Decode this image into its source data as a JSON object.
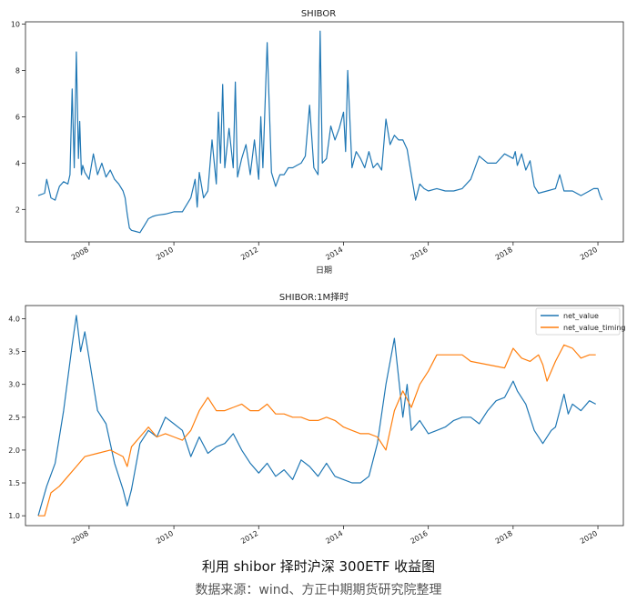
{
  "chart_data": [
    {
      "type": "line",
      "title": "SHIBOR",
      "xlabel": "日期",
      "ylabel": "",
      "xlim": [
        2006.5,
        2020.6
      ],
      "ylim": [
        0.6,
        10.1
      ],
      "xticks": [
        2008,
        2010,
        2012,
        2014,
        2016,
        2018,
        2020
      ],
      "xtick_labels": [
        "2008",
        "2010",
        "2012",
        "2014",
        "2016",
        "2018",
        "2020"
      ],
      "yticks": [
        2,
        4,
        6,
        8,
        10
      ],
      "ytick_labels": [
        "2",
        "4",
        "6",
        "8",
        "10"
      ],
      "grid": false,
      "series": [
        {
          "name": "SHIBOR",
          "color": "#1f77b4",
          "x": [
            2006.8,
            2006.95,
            2007.0,
            2007.1,
            2007.2,
            2007.3,
            2007.4,
            2007.5,
            2007.55,
            2007.6,
            2007.65,
            2007.7,
            2007.75,
            2007.78,
            2007.82,
            2007.85,
            2007.9,
            2008.0,
            2008.1,
            2008.2,
            2008.3,
            2008.4,
            2008.5,
            2008.6,
            2008.7,
            2008.8,
            2008.85,
            2008.9,
            2008.95,
            2009.0,
            2009.1,
            2009.2,
            2009.3,
            2009.4,
            2009.5,
            2009.6,
            2009.8,
            2010.0,
            2010.2,
            2010.4,
            2010.5,
            2010.55,
            2010.6,
            2010.7,
            2010.8,
            2010.9,
            2011.0,
            2011.05,
            2011.1,
            2011.15,
            2011.2,
            2011.3,
            2011.4,
            2011.45,
            2011.5,
            2011.6,
            2011.7,
            2011.8,
            2011.9,
            2012.0,
            2012.05,
            2012.1,
            2012.2,
            2012.3,
            2012.4,
            2012.5,
            2012.6,
            2012.7,
            2012.8,
            2012.9,
            2013.0,
            2013.1,
            2013.2,
            2013.3,
            2013.4,
            2013.45,
            2013.5,
            2013.6,
            2013.7,
            2013.8,
            2013.9,
            2014.0,
            2014.05,
            2014.1,
            2014.2,
            2014.3,
            2014.4,
            2014.5,
            2014.6,
            2014.7,
            2014.8,
            2014.9,
            2015.0,
            2015.1,
            2015.2,
            2015.3,
            2015.4,
            2015.5,
            2015.6,
            2015.7,
            2015.8,
            2015.9,
            2016.0,
            2016.2,
            2016.4,
            2016.6,
            2016.8,
            2017.0,
            2017.2,
            2017.4,
            2017.6,
            2017.8,
            2018.0,
            2018.05,
            2018.1,
            2018.2,
            2018.3,
            2018.4,
            2018.5,
            2018.6,
            2018.8,
            2019.0,
            2019.1,
            2019.2,
            2019.4,
            2019.6,
            2019.8,
            2019.9,
            2020.0,
            2020.05,
            2020.1
          ],
          "y": [
            2.6,
            2.7,
            3.3,
            2.5,
            2.4,
            3.0,
            3.2,
            3.1,
            3.5,
            7.2,
            3.8,
            8.8,
            4.2,
            5.8,
            3.5,
            3.9,
            3.6,
            3.3,
            4.4,
            3.5,
            4.0,
            3.4,
            3.7,
            3.3,
            3.1,
            2.8,
            2.5,
            1.8,
            1.2,
            1.1,
            1.05,
            1.0,
            1.3,
            1.6,
            1.7,
            1.75,
            1.8,
            1.9,
            1.9,
            2.5,
            3.3,
            2.1,
            3.6,
            2.5,
            2.8,
            5.0,
            3.1,
            6.2,
            4.0,
            7.4,
            3.8,
            5.5,
            3.8,
            7.5,
            3.4,
            4.2,
            4.8,
            3.5,
            5.0,
            3.3,
            6.0,
            3.8,
            9.2,
            3.6,
            3.0,
            3.5,
            3.5,
            3.8,
            3.8,
            3.9,
            4.0,
            4.3,
            6.5,
            3.8,
            3.5,
            9.7,
            4.0,
            4.2,
            5.6,
            5.0,
            5.5,
            6.2,
            4.5,
            8.0,
            3.8,
            4.5,
            4.2,
            3.8,
            4.5,
            3.8,
            4.0,
            3.7,
            5.9,
            4.8,
            5.2,
            5.0,
            5.0,
            4.6,
            3.5,
            2.4,
            3.1,
            2.9,
            2.8,
            2.9,
            2.8,
            2.8,
            2.9,
            3.3,
            4.3,
            4.0,
            4.0,
            4.4,
            4.2,
            4.5,
            3.9,
            4.4,
            3.7,
            4.1,
            3.0,
            2.7,
            2.8,
            2.9,
            3.5,
            2.8,
            2.8,
            2.6,
            2.8,
            2.9,
            2.9,
            2.6,
            2.4
          ]
        }
      ]
    },
    {
      "type": "line",
      "title": "SHIBOR:1M择时",
      "xlabel": "",
      "ylabel": "",
      "xlim": [
        2006.5,
        2020.6
      ],
      "ylim": [
        0.85,
        4.2
      ],
      "xticks": [
        2008,
        2010,
        2012,
        2014,
        2016,
        2018,
        2020
      ],
      "xtick_labels": [
        "2008",
        "2010",
        "2012",
        "2014",
        "2016",
        "2018",
        "2020"
      ],
      "yticks": [
        1.0,
        1.5,
        2.0,
        2.5,
        3.0,
        3.5,
        4.0
      ],
      "ytick_labels": [
        "1.0",
        "1.5",
        "2.0",
        "2.5",
        "3.0",
        "3.5",
        "4.0"
      ],
      "grid": false,
      "legend": "top-right",
      "series": [
        {
          "name": "net_value",
          "color": "#1f77b4",
          "x": [
            2006.8,
            2007.0,
            2007.2,
            2007.4,
            2007.6,
            2007.7,
            2007.8,
            2007.9,
            2008.0,
            2008.2,
            2008.4,
            2008.6,
            2008.8,
            2008.9,
            2009.0,
            2009.2,
            2009.4,
            2009.6,
            2009.8,
            2010.0,
            2010.2,
            2010.4,
            2010.6,
            2010.8,
            2011.0,
            2011.2,
            2011.4,
            2011.6,
            2011.8,
            2012.0,
            2012.2,
            2012.4,
            2012.6,
            2012.8,
            2013.0,
            2013.2,
            2013.4,
            2013.6,
            2013.8,
            2014.0,
            2014.2,
            2014.4,
            2014.6,
            2014.8,
            2015.0,
            2015.2,
            2015.4,
            2015.5,
            2015.6,
            2015.8,
            2016.0,
            2016.2,
            2016.4,
            2016.6,
            2016.8,
            2017.0,
            2017.2,
            2017.4,
            2017.6,
            2017.8,
            2018.0,
            2018.1,
            2018.3,
            2018.5,
            2018.7,
            2018.9,
            2019.0,
            2019.2,
            2019.3,
            2019.4,
            2019.6,
            2019.8,
            2019.95
          ],
          "y": [
            1.0,
            1.45,
            1.8,
            2.6,
            3.6,
            4.05,
            3.5,
            3.8,
            3.4,
            2.6,
            2.4,
            1.8,
            1.4,
            1.15,
            1.4,
            2.1,
            2.3,
            2.2,
            2.5,
            2.4,
            2.3,
            1.9,
            2.2,
            1.95,
            2.05,
            2.1,
            2.25,
            2.0,
            1.8,
            1.65,
            1.8,
            1.6,
            1.7,
            1.55,
            1.85,
            1.75,
            1.6,
            1.8,
            1.6,
            1.55,
            1.5,
            1.5,
            1.6,
            2.1,
            3.0,
            3.7,
            2.5,
            3.0,
            2.3,
            2.45,
            2.25,
            2.3,
            2.35,
            2.45,
            2.5,
            2.5,
            2.4,
            2.6,
            2.75,
            2.8,
            3.05,
            2.9,
            2.7,
            2.3,
            2.1,
            2.3,
            2.35,
            2.85,
            2.55,
            2.7,
            2.6,
            2.75,
            2.7
          ]
        },
        {
          "name": "net_value_timing",
          "color": "#ff7f0e",
          "x": [
            2006.8,
            2006.95,
            2007.1,
            2007.3,
            2007.5,
            2007.7,
            2007.9,
            2008.2,
            2008.5,
            2008.8,
            2008.9,
            2009.0,
            2009.2,
            2009.4,
            2009.6,
            2009.8,
            2010.0,
            2010.2,
            2010.4,
            2010.6,
            2010.8,
            2011.0,
            2011.2,
            2011.4,
            2011.6,
            2011.8,
            2012.0,
            2012.2,
            2012.4,
            2012.6,
            2012.8,
            2013.0,
            2013.2,
            2013.4,
            2013.6,
            2013.8,
            2014.0,
            2014.2,
            2014.4,
            2014.6,
            2014.8,
            2015.0,
            2015.2,
            2015.4,
            2015.6,
            2015.8,
            2016.0,
            2016.2,
            2016.4,
            2016.6,
            2016.8,
            2017.0,
            2017.4,
            2017.8,
            2018.0,
            2018.2,
            2018.4,
            2018.6,
            2018.7,
            2018.8,
            2019.0,
            2019.2,
            2019.4,
            2019.6,
            2019.8,
            2019.95
          ],
          "y": [
            1.0,
            1.0,
            1.35,
            1.45,
            1.6,
            1.75,
            1.9,
            1.95,
            2.0,
            1.9,
            1.75,
            2.05,
            2.2,
            2.35,
            2.2,
            2.25,
            2.2,
            2.15,
            2.3,
            2.6,
            2.8,
            2.6,
            2.6,
            2.65,
            2.7,
            2.6,
            2.6,
            2.7,
            2.55,
            2.55,
            2.5,
            2.5,
            2.45,
            2.45,
            2.5,
            2.45,
            2.35,
            2.3,
            2.25,
            2.25,
            2.2,
            2.0,
            2.6,
            2.9,
            2.65,
            3.0,
            3.2,
            3.45,
            3.45,
            3.45,
            3.45,
            3.35,
            3.3,
            3.25,
            3.55,
            3.4,
            3.35,
            3.45,
            3.3,
            3.05,
            3.35,
            3.6,
            3.55,
            3.4,
            3.45,
            3.45
          ]
        }
      ]
    }
  ],
  "captions": {
    "title": "利用 shibor 择时沪深 300ETF 收益图",
    "source": "数据来源：wind、方正中期期货研究院整理"
  }
}
